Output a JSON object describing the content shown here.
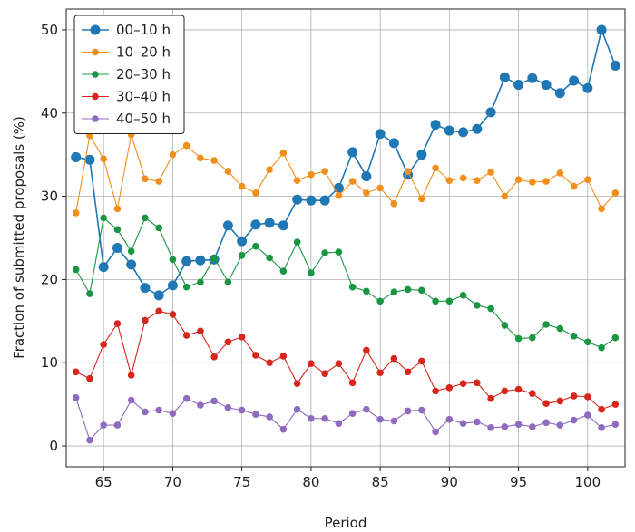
{
  "chart_data": {
    "type": "line",
    "title": "",
    "xlabel": "Period",
    "ylabel": "Fraction of submitted proposals (%)",
    "xlim": [
      62.3,
      102.7
    ],
    "ylim": [
      -2.5,
      52.5
    ],
    "xticks": [
      65,
      70,
      75,
      80,
      85,
      90,
      95,
      100
    ],
    "yticks": [
      0,
      10,
      20,
      30,
      40,
      50
    ],
    "grid": true,
    "legend_position": "top-left",
    "x": [
      63,
      64,
      65,
      66,
      67,
      68,
      69,
      70,
      71,
      72,
      73,
      74,
      75,
      76,
      77,
      78,
      79,
      80,
      81,
      82,
      83,
      84,
      85,
      86,
      87,
      88,
      89,
      90,
      91,
      92,
      93,
      94,
      95,
      96,
      97,
      98,
      99,
      100,
      101,
      102
    ],
    "series": [
      {
        "name": "00–10 h",
        "color": "#1f77b4",
        "marker_size": 5.5,
        "line_width": 1.6,
        "values": [
          34.7,
          34.4,
          21.5,
          23.8,
          21.8,
          19.0,
          18.1,
          19.3,
          22.2,
          22.3,
          22.4,
          26.5,
          24.6,
          26.6,
          26.8,
          26.5,
          29.6,
          29.5,
          29.5,
          31.0,
          35.3,
          32.4,
          37.5,
          36.4,
          32.6,
          35.0,
          38.6,
          37.9,
          37.7,
          38.1,
          40.1,
          44.3,
          43.4,
          44.2,
          43.4,
          42.4,
          43.9,
          43.0,
          50.0,
          45.7
        ]
      },
      {
        "name": "10–20 h",
        "color": "#f28e1c",
        "marker_size": 3.8,
        "line_width": 1.1,
        "values": [
          28.0,
          37.3,
          34.5,
          28.5,
          37.4,
          32.1,
          31.8,
          35.0,
          36.1,
          34.6,
          34.3,
          33.0,
          31.2,
          30.4,
          33.2,
          35.2,
          31.9,
          32.6,
          33.0,
          30.1,
          31.8,
          30.4,
          31.0,
          29.1,
          33.0,
          29.7,
          33.4,
          31.9,
          32.2,
          31.9,
          32.9,
          30.0,
          32.0,
          31.7,
          31.8,
          32.8,
          31.2,
          32.0,
          28.5,
          30.4
        ]
      },
      {
        "name": "20–30 h",
        "color": "#1a9643",
        "marker_size": 3.8,
        "line_width": 1.1,
        "values": [
          21.2,
          18.3,
          27.4,
          26.0,
          23.4,
          27.4,
          26.2,
          22.4,
          19.1,
          19.7,
          22.6,
          19.7,
          22.9,
          24.0,
          22.6,
          21.0,
          24.5,
          20.8,
          23.2,
          23.3,
          19.1,
          18.6,
          17.4,
          18.5,
          18.8,
          18.7,
          17.4,
          17.4,
          18.1,
          16.9,
          16.5,
          14.5,
          12.9,
          13.0,
          14.6,
          14.1,
          13.2,
          12.5,
          11.8,
          13.0
        ]
      },
      {
        "name": "30–40 h",
        "color": "#d7261b",
        "marker_size": 3.8,
        "line_width": 1.1,
        "values": [
          8.9,
          8.1,
          12.2,
          14.7,
          8.5,
          15.1,
          16.2,
          15.8,
          13.3,
          13.8,
          10.7,
          12.5,
          13.1,
          10.9,
          10.0,
          10.8,
          7.5,
          9.9,
          8.7,
          9.9,
          7.6,
          11.5,
          8.8,
          10.5,
          8.9,
          10.2,
          6.6,
          7.0,
          7.5,
          7.6,
          5.7,
          6.6,
          6.8,
          6.3,
          5.1,
          5.4,
          6.0,
          5.9,
          4.4,
          5.0
        ]
      },
      {
        "name": "40–50 h",
        "color": "#8e6bbf",
        "marker_size": 3.8,
        "line_width": 1.1,
        "values": [
          5.8,
          0.7,
          2.5,
          2.5,
          5.5,
          4.1,
          4.3,
          3.9,
          5.7,
          4.9,
          5.4,
          4.6,
          4.3,
          3.8,
          3.5,
          2.0,
          4.4,
          3.3,
          3.3,
          2.7,
          3.9,
          4.4,
          3.2,
          3.0,
          4.2,
          4.3,
          1.7,
          3.2,
          2.7,
          2.9,
          2.2,
          2.3,
          2.6,
          2.3,
          2.8,
          2.5,
          3.1,
          3.7,
          2.2,
          2.6
        ]
      }
    ]
  }
}
